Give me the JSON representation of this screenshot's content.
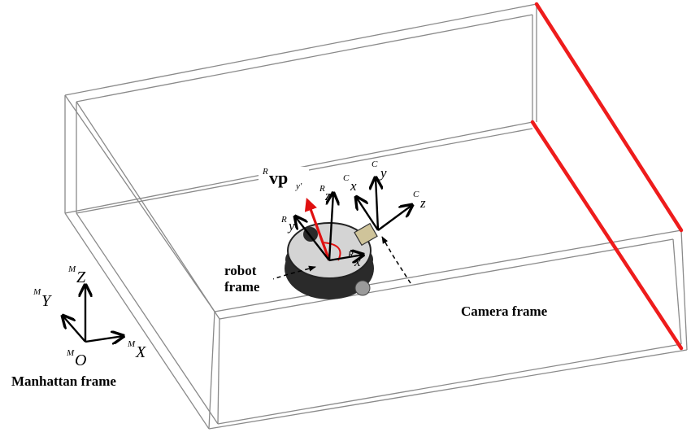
{
  "labels": {
    "manhattan_frame": "Manhattan frame",
    "robot_frame_line1": "robot",
    "robot_frame_line2": "frame",
    "camera_frame": "Camera frame",
    "vp": "vp",
    "vp_pre_sup": "R",
    "vp_post_sub": "y'"
  },
  "manhattan_axes": {
    "origin": "O",
    "origin_sup": "M",
    "x": "X",
    "x_sup": "M",
    "y": "Y",
    "y_sup": "M",
    "z": "Z",
    "z_sup": "M"
  },
  "robot_axes": {
    "x": "x",
    "x_sup": "R",
    "y": "y",
    "y_sup": "R",
    "z": "z",
    "z_sup": "R"
  },
  "camera_axes": {
    "x": "x",
    "x_sup": "C",
    "y": "y",
    "y_sup": "C",
    "z": "z",
    "z_sup": "C"
  },
  "colors": {
    "box_edges": "#8a8a8a",
    "highlight_edges": "#ee1c1c",
    "vanishing_direction": "#e01010"
  }
}
